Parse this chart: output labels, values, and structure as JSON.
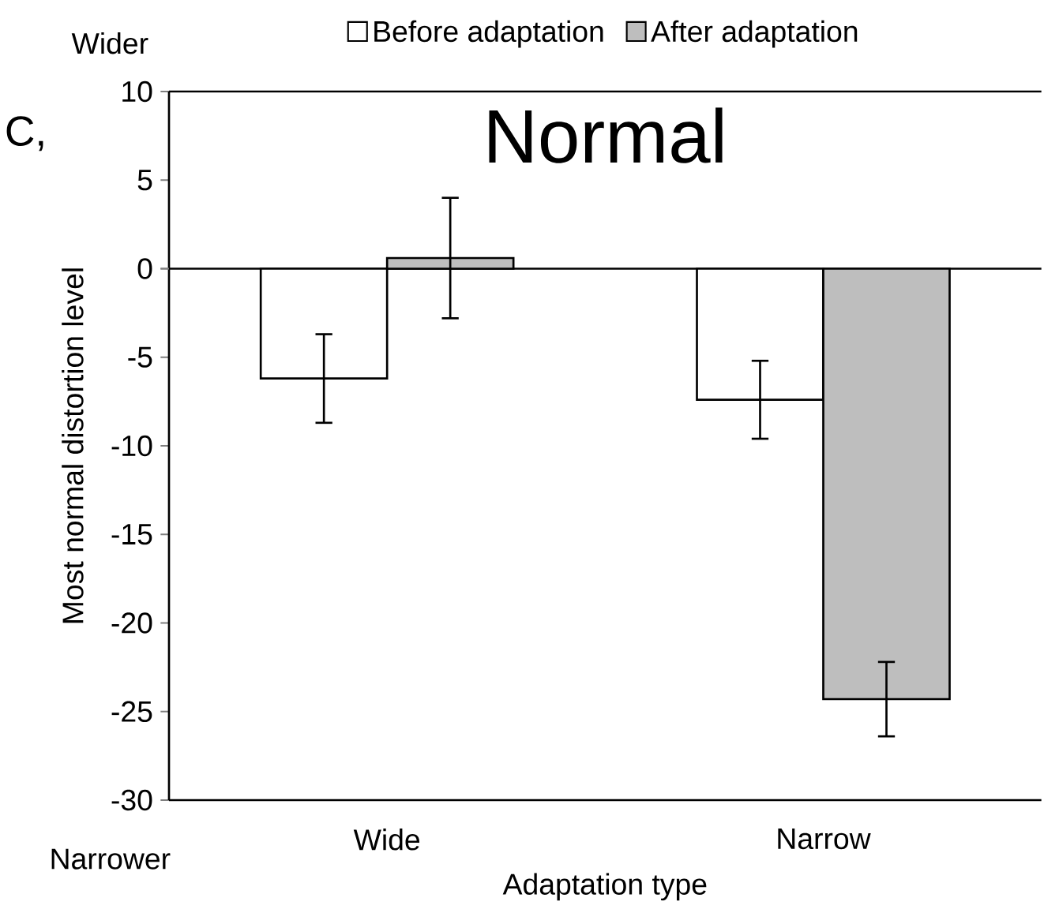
{
  "chart_data": {
    "type": "bar",
    "title": "Normal",
    "xlabel": "Adaptation type",
    "ylabel": "Most normal distortion level",
    "categories": [
      "Wide",
      "Narrow"
    ],
    "series": [
      {
        "name": "Before adaptation",
        "color": "#ffffff",
        "values": [
          -6.2,
          -7.4
        ],
        "errors": [
          2.5,
          2.2
        ]
      },
      {
        "name": "After adaptation",
        "color": "#bebebe",
        "values": [
          0.6,
          -24.3
        ],
        "errors": [
          3.4,
          2.1
        ]
      }
    ],
    "ylim": [
      -30,
      10
    ],
    "yticks": [
      -30,
      -25,
      -20,
      -15,
      -10,
      -5,
      0,
      5,
      10
    ],
    "legend": "top",
    "annotations": [
      "Wider",
      "Narrower",
      "C,"
    ]
  }
}
